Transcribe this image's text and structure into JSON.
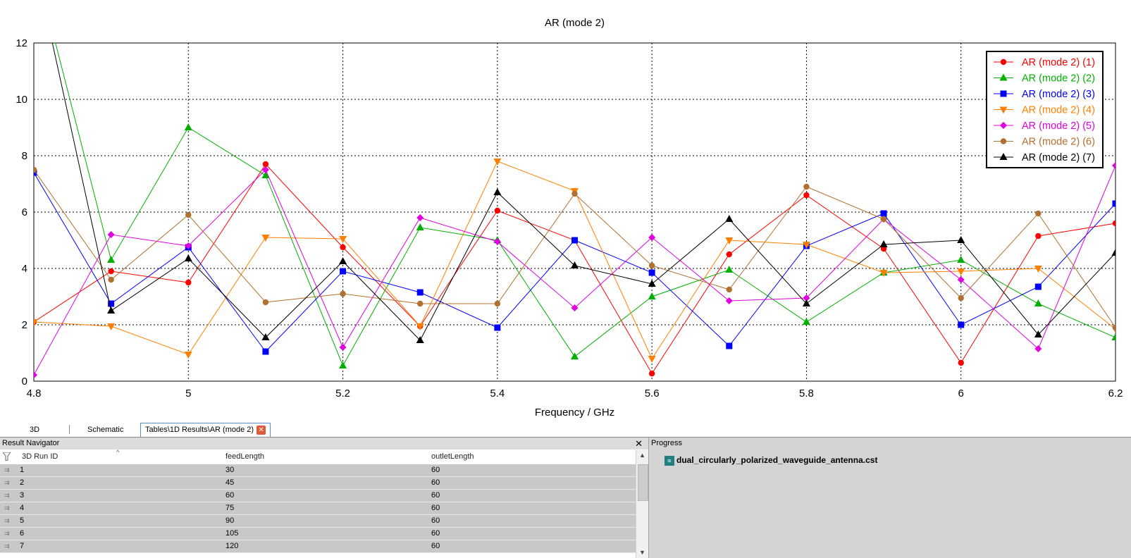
{
  "chart_data": {
    "type": "line",
    "title": "AR (mode 2)",
    "xlabel": "Frequency / GHz",
    "ylabel": "",
    "x": [
      4.8,
      4.9,
      5.0,
      5.1,
      5.2,
      5.3,
      5.4,
      5.5,
      5.6,
      5.7,
      5.8,
      5.9,
      6.0,
      6.1,
      6.2
    ],
    "xlim": [
      4.8,
      6.2
    ],
    "ylim": [
      0,
      12
    ],
    "xticks": [
      4.8,
      5,
      5.2,
      5.4,
      5.6,
      5.8,
      6,
      6.2
    ],
    "xtick_labels": [
      "4.8",
      "5",
      "5.2",
      "5.4",
      "5.6",
      "5.8",
      "6",
      "6.2"
    ],
    "yticks": [
      0,
      2,
      4,
      6,
      8,
      10,
      12
    ],
    "ytick_labels": [
      "0",
      "2",
      "4",
      "6",
      "8",
      "10",
      "12"
    ],
    "grid": true,
    "legend_position": "top-right",
    "series": [
      {
        "name": "AR (mode 2) (1)",
        "color": "#ff0000",
        "marker": "circle",
        "values": [
          2.1,
          3.9,
          3.5,
          7.7,
          4.75,
          1.95,
          6.05,
          5.0,
          0.27,
          4.5,
          6.6,
          4.7,
          0.65,
          5.15,
          5.6
        ]
      },
      {
        "name": "AR (mode 2) (2)",
        "color": "#00b000",
        "marker": "triangle",
        "values": [
          15.0,
          4.3,
          9.0,
          7.3,
          0.55,
          5.45,
          5.0,
          0.87,
          3.0,
          3.95,
          2.1,
          3.85,
          4.3,
          2.75,
          1.55
        ]
      },
      {
        "name": "AR (mode 2) (3)",
        "color": "#0000ff",
        "marker": "square",
        "values": [
          7.4,
          2.75,
          4.75,
          1.05,
          3.9,
          3.15,
          1.9,
          5.0,
          3.85,
          1.25,
          4.8,
          5.95,
          2.0,
          3.35,
          6.3
        ]
      },
      {
        "name": "AR (mode 2) (4)",
        "color": "#ff8000",
        "marker": "triangle-down",
        "values": [
          2.1,
          1.95,
          0.95,
          5.1,
          5.05,
          1.95,
          7.8,
          6.75,
          0.8,
          5.0,
          4.85,
          3.85,
          3.9,
          4.0,
          1.85
        ]
      },
      {
        "name": "AR (mode 2) (5)",
        "color": "#e000e0",
        "marker": "diamond",
        "values": [
          0.22,
          5.2,
          4.8,
          7.5,
          1.2,
          5.8,
          4.95,
          2.6,
          5.1,
          2.85,
          2.95,
          5.75,
          3.6,
          1.15,
          7.65
        ]
      },
      {
        "name": "AR (mode 2) (6)",
        "color": "#b07030",
        "marker": "circle",
        "values": [
          7.5,
          3.6,
          5.9,
          2.8,
          3.1,
          2.75,
          2.75,
          6.65,
          4.1,
          3.25,
          6.9,
          5.75,
          2.95,
          5.95,
          1.9
        ]
      },
      {
        "name": "AR (mode 2) (7)",
        "color": "#000000",
        "marker": "triangle",
        "values": [
          15.0,
          2.5,
          4.35,
          1.55,
          4.25,
          1.45,
          6.7,
          4.1,
          3.45,
          5.75,
          2.75,
          4.85,
          5.0,
          1.65,
          4.55
        ]
      }
    ]
  },
  "tabs": {
    "tab_3d": "3D",
    "tab_schematic": "Schematic",
    "tab_active": "Tables\\1D Results\\AR (mode 2)"
  },
  "navigator": {
    "title": "Result Navigator",
    "columns": [
      "3D Run ID",
      "feedLength",
      "outletLength"
    ],
    "rows": [
      {
        "id": "1",
        "feed": "30",
        "outlet": "60"
      },
      {
        "id": "2",
        "feed": "45",
        "outlet": "60"
      },
      {
        "id": "3",
        "feed": "60",
        "outlet": "60"
      },
      {
        "id": "4",
        "feed": "75",
        "outlet": "60"
      },
      {
        "id": "5",
        "feed": "90",
        "outlet": "60"
      },
      {
        "id": "6",
        "feed": "105",
        "outlet": "60"
      },
      {
        "id": "7",
        "feed": "120",
        "outlet": "60"
      }
    ]
  },
  "progress": {
    "title": "Progress",
    "file": "dual_circularly_polarized_waveguide_antenna.cst"
  }
}
